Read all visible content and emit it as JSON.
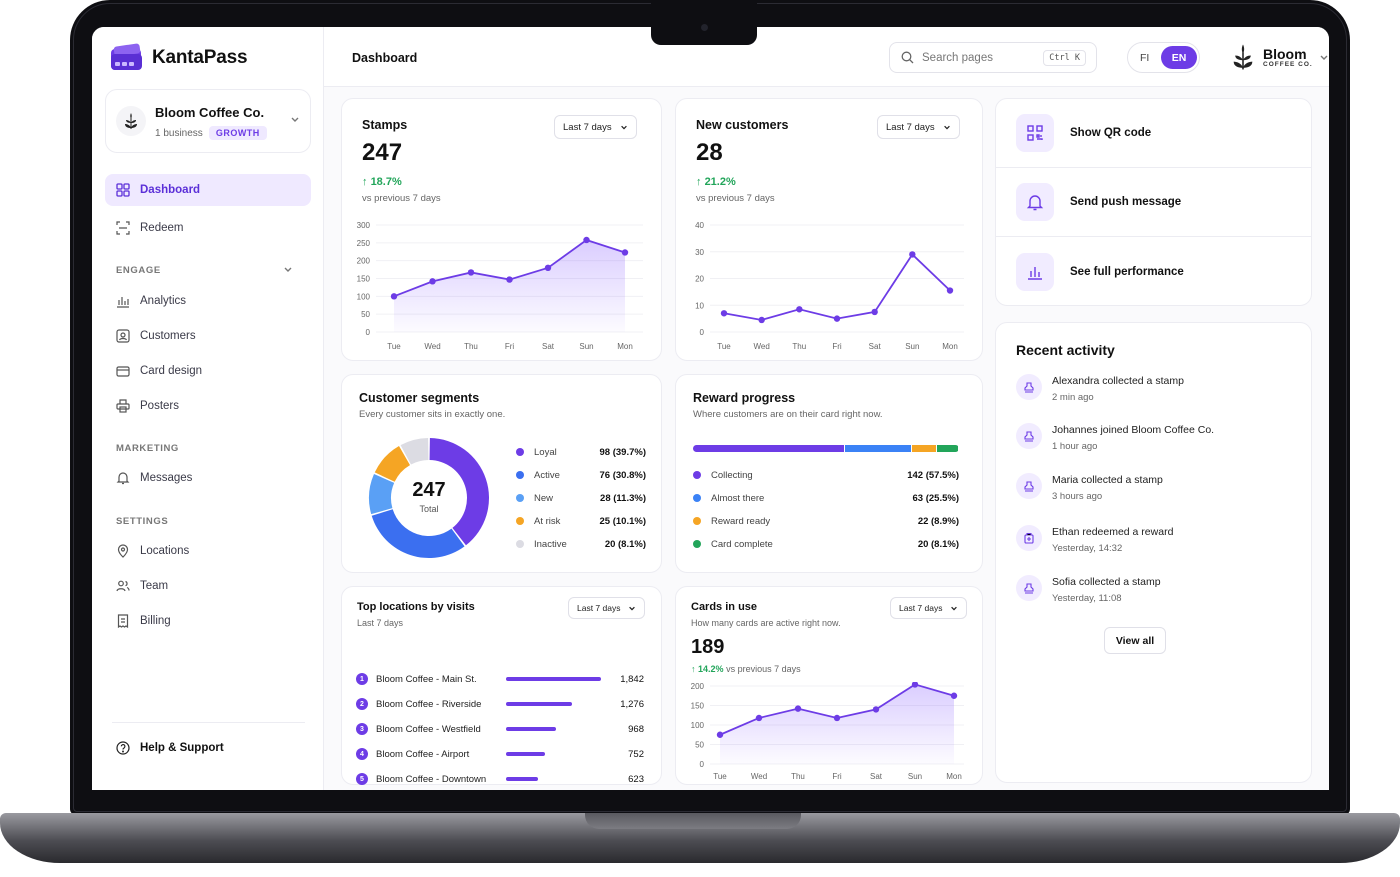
{
  "app": {
    "name": "KantaPass"
  },
  "business": {
    "name": "Bloom Coffee Co.",
    "count": "1 business",
    "plan": "GROWTH"
  },
  "sidebar": {
    "dashboard": "Dashboard",
    "redeem": "Redeem",
    "engage_section": "ENGAGE",
    "analytics": "Analytics",
    "customers": "Customers",
    "card_design": "Card design",
    "posters": "Posters",
    "marketing_section": "MARKETING",
    "messages": "Messages",
    "settings_section": "SETTINGS",
    "locations": "Locations",
    "team": "Team",
    "billing": "Billing",
    "help": "Help & Support"
  },
  "header": {
    "title": "Dashboard",
    "search_placeholder": "Search pages",
    "shortcut": "Ctrl K",
    "lang_fi": "FI",
    "lang_en": "EN",
    "account_name": "Bloom",
    "account_sub": "COFFEE CO."
  },
  "stamps": {
    "title": "Stamps",
    "range": "Last 7 days",
    "value": "247",
    "delta": "18.7%",
    "delta_sub": "vs previous 7 days"
  },
  "new_customers": {
    "title": "New customers",
    "range": "Last 7 days",
    "value": "28",
    "delta": "21.2%",
    "delta_sub": "vs previous 7 days"
  },
  "quick_actions": {
    "qr": "Show QR code",
    "push": "Send push message",
    "perf": "See full performance"
  },
  "segments": {
    "title": "Customer segments",
    "subtitle": "Every customer sits in exactly one.",
    "total": "247",
    "total_label": "Total",
    "items": [
      {
        "label": "Loyal",
        "value": "98 (39.7%)",
        "count": 98,
        "color": "#6d3ce6"
      },
      {
        "label": "Active",
        "value": "76 (30.8%)",
        "count": 76,
        "color": "#3b6ff0"
      },
      {
        "label": "New",
        "value": "28 (11.3%)",
        "count": 28,
        "color": "#5aa0f5"
      },
      {
        "label": "At risk",
        "value": "25 (10.1%)",
        "count": 25,
        "color": "#f5a524"
      },
      {
        "label": "Inactive",
        "value": "20 (8.1%)",
        "count": 20,
        "color": "#dcdce3"
      }
    ]
  },
  "reward": {
    "title": "Reward progress",
    "subtitle": "Where customers are on their card right now.",
    "items": [
      {
        "label": "Collecting",
        "value": "142 (57.5%)",
        "pct": 57.5,
        "color": "#6d3ce6"
      },
      {
        "label": "Almost there",
        "value": "63 (25.5%)",
        "pct": 25.5,
        "color": "#3b82f6"
      },
      {
        "label": "Reward ready",
        "value": "22 (8.9%)",
        "pct": 8.9,
        "color": "#f5a524"
      },
      {
        "label": "Card complete",
        "value": "20 (8.1%)",
        "pct": 8.1,
        "color": "#22a55a"
      }
    ]
  },
  "activity": {
    "title": "Recent activity",
    "items": [
      {
        "text": "Alexandra collected a stamp",
        "time": "2 min ago"
      },
      {
        "text": "Johannes joined Bloom Coffee Co.",
        "time": "1 hour ago"
      },
      {
        "text": "Maria collected a stamp",
        "time": "3 hours ago"
      },
      {
        "text": "Ethan redeemed a reward",
        "time": "Yesterday, 14:32"
      },
      {
        "text": "Sofia collected a stamp",
        "time": "Yesterday, 11:08"
      }
    ],
    "view_all": "View all"
  },
  "locations": {
    "title": "Top locations by visits",
    "subtitle": "Last 7 days",
    "range": "Last 7 days",
    "items": [
      {
        "rank": "1",
        "name": "Bloom Coffee - Main St.",
        "value": "1,842",
        "visits": 1842
      },
      {
        "rank": "2",
        "name": "Bloom Coffee - Riverside",
        "value": "1,276",
        "visits": 1276
      },
      {
        "rank": "3",
        "name": "Bloom Coffee - Westfield",
        "value": "968",
        "visits": 968
      },
      {
        "rank": "4",
        "name": "Bloom Coffee - Airport",
        "value": "752",
        "visits": 752
      },
      {
        "rank": "5",
        "name": "Bloom Coffee - Downtown",
        "value": "623",
        "visits": 623
      }
    ]
  },
  "cards_in_use": {
    "title": "Cards in use",
    "subtitle": "How many cards are active right now.",
    "range": "Last 7 days",
    "value": "189",
    "delta": "14.2%",
    "delta_sub": "vs previous 7 days"
  },
  "colors": {
    "accent": "#6d3ce6",
    "positive": "#22a55a"
  },
  "chart_data": [
    {
      "type": "area",
      "categories": [
        "Tue",
        "Wed",
        "Thu",
        "Fri",
        "Sat",
        "Sun",
        "Mon"
      ],
      "series": [
        {
          "values": [
            100,
            142,
            167,
            147,
            180,
            258,
            223
          ]
        }
      ],
      "ylim": [
        0,
        300
      ],
      "yticks": [
        0,
        50,
        100,
        150,
        200,
        250,
        300
      ]
    },
    {
      "type": "line",
      "categories": [
        "Tue",
        "Wed",
        "Thu",
        "Fri",
        "Sat",
        "Sun",
        "Mon"
      ],
      "series": [
        {
          "values": [
            7,
            4.5,
            8.5,
            5,
            7.5,
            29,
            15.5
          ]
        }
      ],
      "ylim": [
        0,
        40
      ],
      "yticks": [
        0,
        10,
        20,
        30,
        40
      ]
    },
    {
      "type": "pie",
      "categories": [
        "Loyal",
        "Active",
        "New",
        "At risk",
        "Inactive"
      ],
      "values": [
        98,
        76,
        28,
        25,
        20
      ]
    },
    {
      "type": "bar",
      "categories": [
        "Bloom Coffee - Main St.",
        "Bloom Coffee - Riverside",
        "Bloom Coffee - Westfield",
        "Bloom Coffee - Airport",
        "Bloom Coffee - Downtown"
      ],
      "values": [
        1842,
        1276,
        968,
        752,
        623
      ]
    },
    {
      "type": "area",
      "categories": [
        "Tue",
        "Wed",
        "Thu",
        "Fri",
        "Sat",
        "Sun",
        "Mon"
      ],
      "series": [
        {
          "values": [
            75,
            118,
            142,
            118,
            140,
            204,
            175
          ]
        }
      ],
      "ylim": [
        0,
        200
      ],
      "yticks": [
        0,
        50,
        100,
        150,
        200
      ]
    }
  ]
}
